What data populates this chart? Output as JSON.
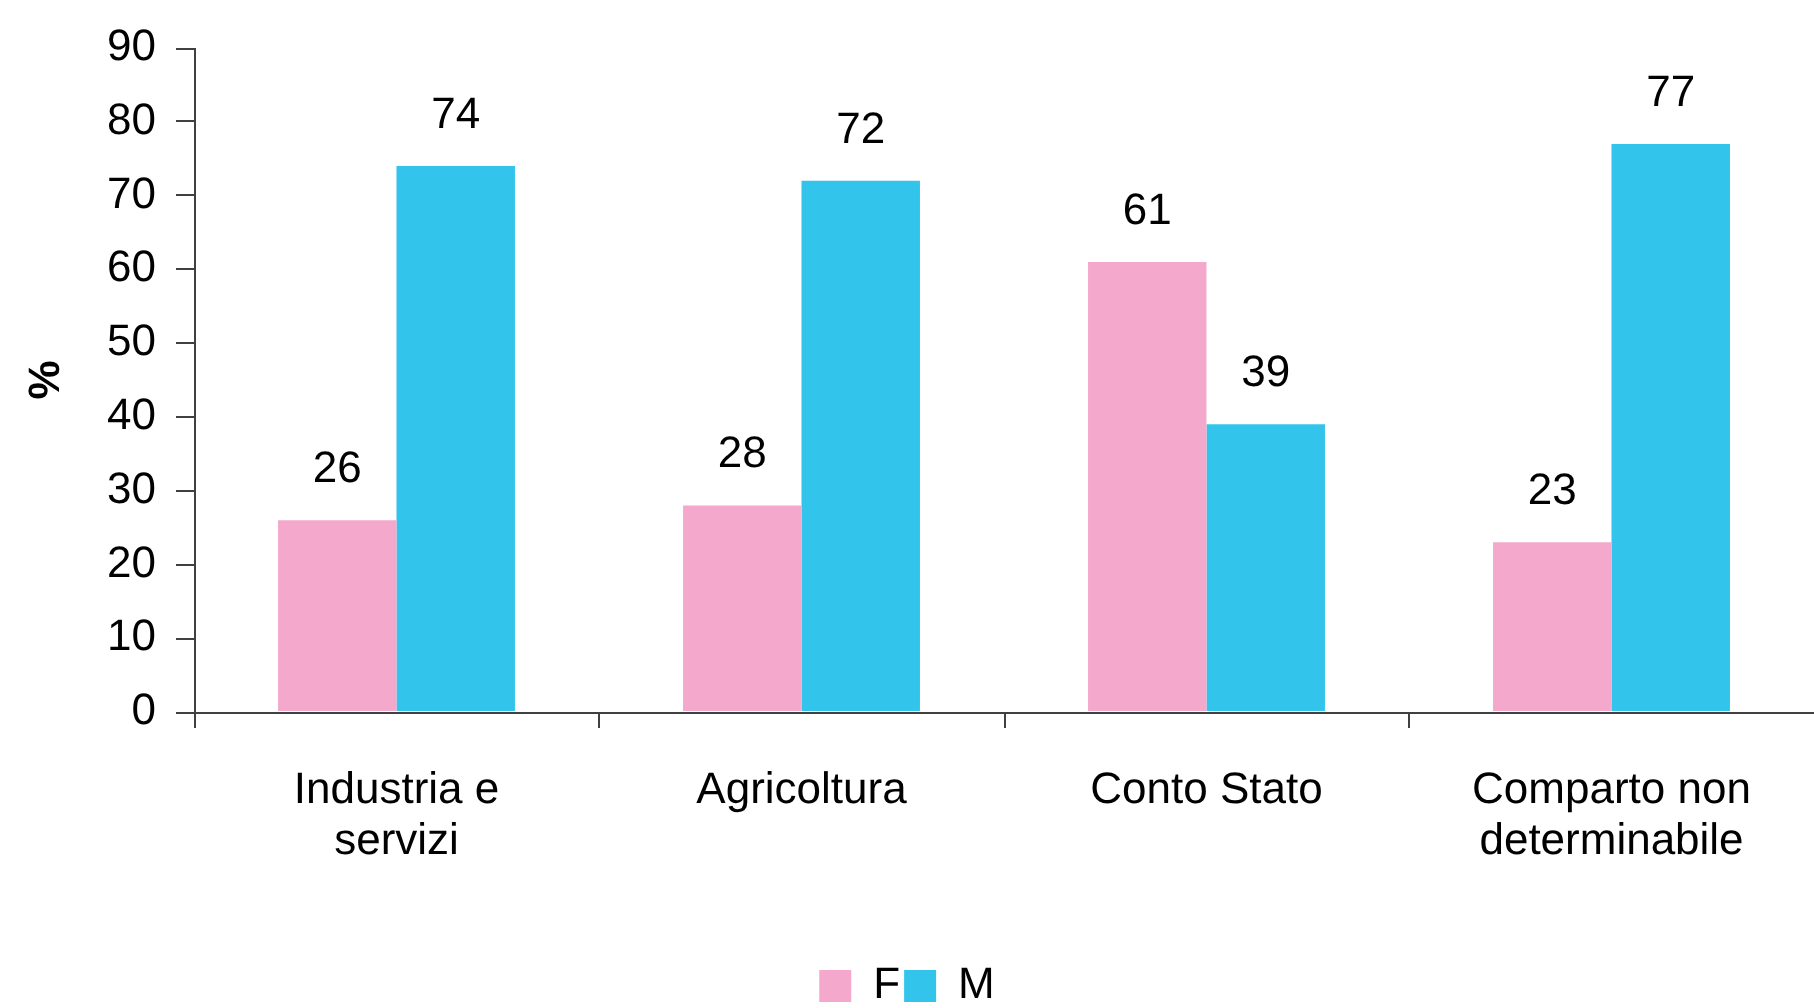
{
  "chart_data": {
    "type": "bar",
    "categories": [
      "Industria e servizi",
      "Agricoltura",
      "Conto Stato",
      "Comparto non determinabile"
    ],
    "series": [
      {
        "name": "F",
        "color": "#f4a9cc",
        "values": [
          26,
          28,
          61,
          23
        ]
      },
      {
        "name": "M",
        "color": "#33c4ec",
        "values": [
          74,
          72,
          39,
          77
        ]
      }
    ],
    "ylabel": "%",
    "ylim": [
      0,
      90
    ],
    "yticks": [
      0,
      10,
      20,
      30,
      40,
      50,
      60,
      70,
      80,
      90
    ],
    "grid": false,
    "legend": "bottom",
    "data_labels": true
  }
}
